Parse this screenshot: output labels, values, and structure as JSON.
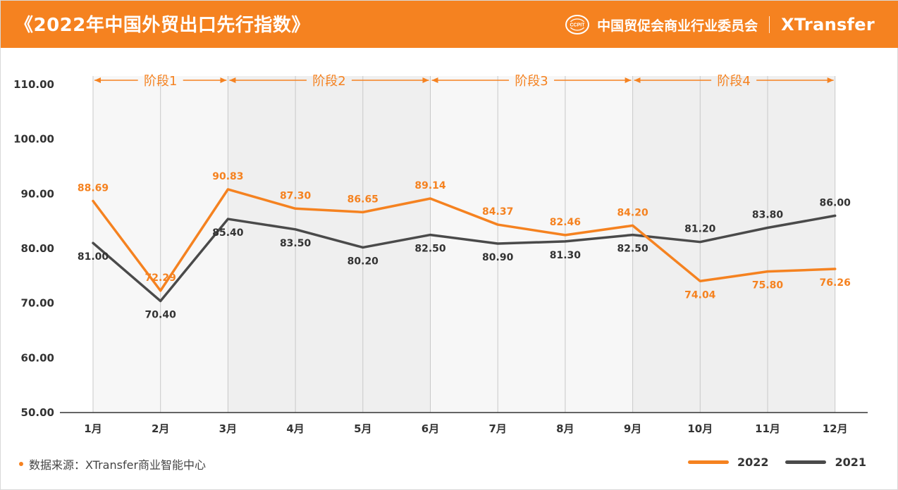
{
  "header": {
    "title": "《2022年中国外贸出口先行指数》",
    "org_name": "中国贸促会商业行业委员会",
    "brand": "XTransfer",
    "logo_text": "CCPIT",
    "color": "#f58220"
  },
  "footer": {
    "source": "数据来源：XTransfer商业智能中心"
  },
  "chart_data": {
    "type": "line",
    "categories": [
      "1月",
      "2月",
      "3月",
      "4月",
      "5月",
      "6月",
      "7月",
      "8月",
      "9月",
      "10月",
      "11月",
      "12月"
    ],
    "y_ticks": [
      "50.00",
      "60.00",
      "70.00",
      "80.00",
      "90.00",
      "100.00",
      "110.00"
    ],
    "ylim": [
      50,
      110
    ],
    "series": [
      {
        "name": "2022",
        "color": "#f58220",
        "values": [
          88.69,
          72.29,
          90.83,
          87.3,
          86.65,
          89.14,
          84.37,
          82.46,
          84.2,
          74.04,
          75.8,
          76.26
        ],
        "labels": [
          "88.69",
          "72.29",
          "90.83",
          "87.30",
          "86.65",
          "89.14",
          "84.37",
          "82.46",
          "84.20",
          "74.04",
          "75.80",
          "76.26"
        ]
      },
      {
        "name": "2021",
        "color": "#4a4a4a",
        "values": [
          81.0,
          70.4,
          85.4,
          83.5,
          80.2,
          82.5,
          80.9,
          81.3,
          82.5,
          81.2,
          83.8,
          86.0
        ],
        "labels": [
          "81.00",
          "70.40",
          "85.40",
          "83.50",
          "80.20",
          "82.50",
          "80.90",
          "81.30",
          "82.50",
          "81.20",
          "83.80",
          "86.00"
        ]
      }
    ],
    "phases": [
      {
        "label": "阶段1",
        "start_index": 0,
        "end_index": 2
      },
      {
        "label": "阶段2",
        "start_index": 2,
        "end_index": 5
      },
      {
        "label": "阶段3",
        "start_index": 5,
        "end_index": 8
      },
      {
        "label": "阶段4",
        "start_index": 8,
        "end_index": 11
      }
    ],
    "grid": "vertical",
    "legend": "bottom-right"
  }
}
